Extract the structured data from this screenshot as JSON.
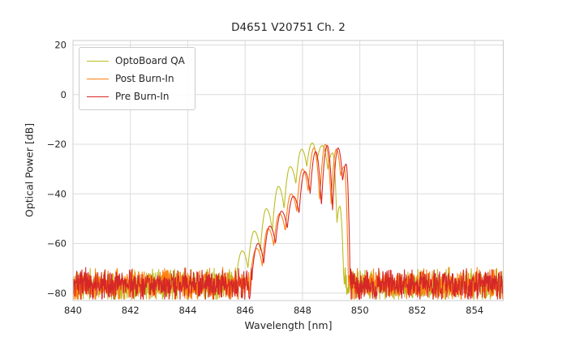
{
  "chart_data": {
    "type": "line",
    "title": "D4651 V20751 Ch. 2",
    "xlabel": "Wavelength [nm]",
    "ylabel": "Optical Power [dB]",
    "xlim": [
      840,
      855
    ],
    "ylim": [
      -83,
      21.8
    ],
    "xticks": [
      {
        "v": 840,
        "label": "840"
      },
      {
        "v": 842,
        "label": "842"
      },
      {
        "v": 844,
        "label": "844"
      },
      {
        "v": 846,
        "label": "846"
      },
      {
        "v": 848,
        "label": "848"
      },
      {
        "v": 850,
        "label": "850"
      },
      {
        "v": 852,
        "label": "852"
      },
      {
        "v": 854,
        "label": "854"
      }
    ],
    "yticks": [
      {
        "v": 20,
        "label": "20"
      },
      {
        "v": 0,
        "label": "0"
      },
      {
        "v": -20,
        "label": "−20"
      },
      {
        "v": -40,
        "label": "−40"
      },
      {
        "v": -60,
        "label": "−60"
      },
      {
        "v": -80,
        "label": "−80"
      }
    ],
    "grid": true,
    "grid_color": "#dcdcdc",
    "spine_color": "#cccccc",
    "legend_position": "upper-left",
    "noise_floor_db": {
      "mean": -76.5,
      "min": -82.4,
      "max": -69.5
    },
    "series": [
      {
        "name": "OptoBoard QA",
        "color": "#bcbd22",
        "noise_seed": 11,
        "peak_power_db": -19.5,
        "signal_anchors": [
          [
            845.68,
            -75
          ],
          [
            845.9,
            -63
          ],
          [
            846.1,
            -70
          ],
          [
            846.32,
            -55
          ],
          [
            846.53,
            -63
          ],
          [
            846.74,
            -46
          ],
          [
            846.95,
            -55
          ],
          [
            847.16,
            -37
          ],
          [
            847.36,
            -46
          ],
          [
            847.57,
            -29
          ],
          [
            847.77,
            -36
          ],
          [
            847.97,
            -22
          ],
          [
            848.15,
            -29
          ],
          [
            848.34,
            -19.5
          ],
          [
            848.5,
            -27
          ],
          [
            848.69,
            -20.5
          ],
          [
            848.88,
            -30
          ],
          [
            849.05,
            -23.5
          ],
          [
            849.2,
            -52
          ],
          [
            849.3,
            -45
          ],
          [
            849.44,
            -76
          ]
        ]
      },
      {
        "name": "Post Burn-In",
        "color": "#ff7f0e",
        "noise_seed": 22,
        "peak_power_db": -20,
        "signal_anchors": [
          [
            846.18,
            -74
          ],
          [
            846.4,
            -62
          ],
          [
            846.6,
            -69
          ],
          [
            846.8,
            -54
          ],
          [
            847.0,
            -61
          ],
          [
            847.2,
            -48
          ],
          [
            847.4,
            -55
          ],
          [
            847.6,
            -40
          ],
          [
            847.8,
            -47
          ],
          [
            848.0,
            -30
          ],
          [
            848.2,
            -39
          ],
          [
            848.4,
            -21.5
          ],
          [
            848.6,
            -43
          ],
          [
            848.8,
            -20
          ],
          [
            849.0,
            -44
          ],
          [
            849.18,
            -22
          ],
          [
            849.33,
            -33
          ],
          [
            849.45,
            -29
          ],
          [
            849.6,
            -75
          ]
        ]
      },
      {
        "name": "Pre Burn-In",
        "color": "#d62728",
        "noise_seed": 33,
        "peak_power_db": -20.5,
        "signal_anchors": [
          [
            846.24,
            -73
          ],
          [
            846.45,
            -60
          ],
          [
            846.65,
            -68
          ],
          [
            846.86,
            -53
          ],
          [
            847.06,
            -60
          ],
          [
            847.27,
            -47
          ],
          [
            847.47,
            -54
          ],
          [
            847.68,
            -41
          ],
          [
            847.88,
            -48
          ],
          [
            848.08,
            -31
          ],
          [
            848.27,
            -40
          ],
          [
            848.46,
            -23
          ],
          [
            848.66,
            -45
          ],
          [
            848.86,
            -20.5
          ],
          [
            849.05,
            -47
          ],
          [
            849.24,
            -21.5
          ],
          [
            849.4,
            -35
          ],
          [
            849.52,
            -28
          ],
          [
            849.66,
            -74
          ]
        ]
      }
    ]
  }
}
